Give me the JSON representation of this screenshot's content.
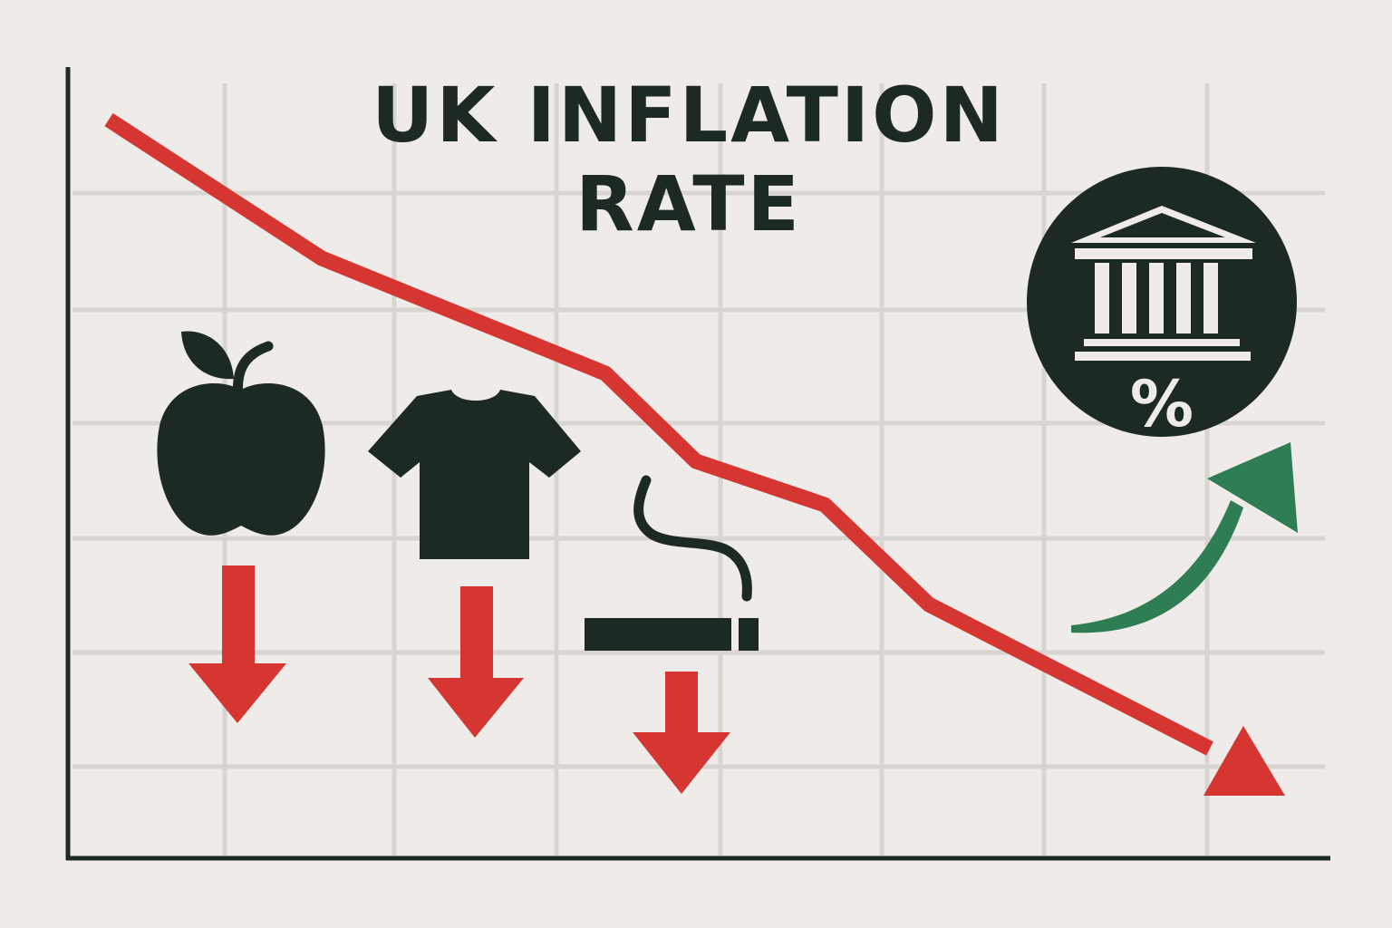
{
  "title": "UK INFLATION RATE",
  "colors": {
    "background": "#efebe8",
    "grid": "#d8d5d1",
    "axis": "#1d2a24",
    "decline": "#d53632",
    "rise": "#2f7d54",
    "icon": "#1d2a24",
    "icon_inner": "#efebe8"
  },
  "icons": [
    "apple-icon",
    "t-shirt-icon",
    "cigarette-icon",
    "bank-icon"
  ],
  "bank_badge": {
    "symbol": "%"
  },
  "trend": "downward"
}
